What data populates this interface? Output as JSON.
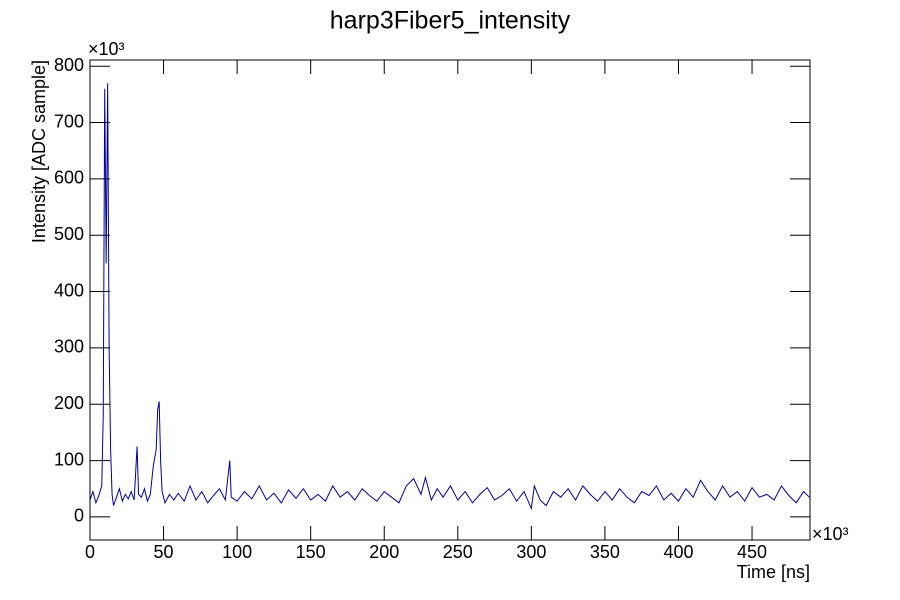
{
  "chart_data": {
    "type": "line",
    "title": "harp3Fiber5_intensity",
    "x_label": "Time [ns]",
    "y_label": "Intensity [ADC sample]",
    "x_exponent": "×10³",
    "y_exponent": "×10³",
    "color": "#000099",
    "grid": false,
    "xlim": [
      0,
      489.4
    ],
    "ylim": [
      -41,
      811
    ],
    "xticks": [
      0,
      50,
      100,
      150,
      200,
      250,
      300,
      350,
      400,
      450
    ],
    "yticks": [
      0,
      100,
      200,
      300,
      400,
      500,
      600,
      700,
      800
    ],
    "series": [
      {
        "name": "harp3Fiber5_intensity",
        "color": "#000099",
        "x": [
          0,
          2,
          4,
          6,
          8,
          9,
          10,
          11,
          12,
          13,
          14,
          15,
          16,
          18,
          20,
          22,
          24,
          26,
          28,
          30,
          32,
          33,
          35,
          37,
          39,
          41,
          43,
          45,
          46,
          47,
          48,
          49,
          51,
          54,
          57,
          60,
          64,
          68,
          72,
          76,
          80,
          84,
          88,
          92,
          95,
          96,
          100,
          105,
          110,
          115,
          120,
          125,
          130,
          135,
          140,
          145,
          150,
          155,
          160,
          165,
          170,
          175,
          180,
          185,
          190,
          195,
          200,
          205,
          210,
          215,
          220,
          225,
          228,
          232,
          236,
          240,
          245,
          250,
          255,
          260,
          265,
          270,
          275,
          280,
          285,
          290,
          295,
          300,
          302,
          306,
          310,
          315,
          320,
          325,
          330,
          335,
          340,
          345,
          350,
          355,
          360,
          365,
          370,
          375,
          380,
          385,
          390,
          395,
          400,
          405,
          410,
          415,
          420,
          425,
          430,
          435,
          440,
          445,
          450,
          455,
          460,
          465,
          470,
          475,
          480,
          485,
          489
        ],
        "values": [
          30,
          45,
          25,
          38,
          55,
          180,
          760,
          450,
          770,
          300,
          120,
          40,
          20,
          35,
          50,
          28,
          40,
          32,
          45,
          30,
          125,
          40,
          35,
          50,
          28,
          40,
          90,
          120,
          190,
          205,
          100,
          45,
          25,
          40,
          30,
          42,
          28,
          55,
          30,
          45,
          25,
          38,
          50,
          30,
          100,
          35,
          28,
          45,
          32,
          55,
          30,
          42,
          25,
          48,
          33,
          50,
          30,
          40,
          28,
          55,
          35,
          45,
          30,
          50,
          38,
          28,
          45,
          35,
          25,
          55,
          68,
          40,
          70,
          30,
          50,
          35,
          55,
          30,
          45,
          25,
          40,
          52,
          30,
          38,
          50,
          28,
          45,
          15,
          55,
          30,
          20,
          45,
          35,
          50,
          30,
          55,
          40,
          28,
          45,
          30,
          50,
          35,
          25,
          45,
          38,
          55,
          30,
          42,
          28,
          50,
          35,
          65,
          45,
          30,
          55,
          35,
          45,
          28,
          52,
          35,
          40,
          30,
          55,
          38,
          25,
          45,
          35
        ]
      }
    ]
  }
}
